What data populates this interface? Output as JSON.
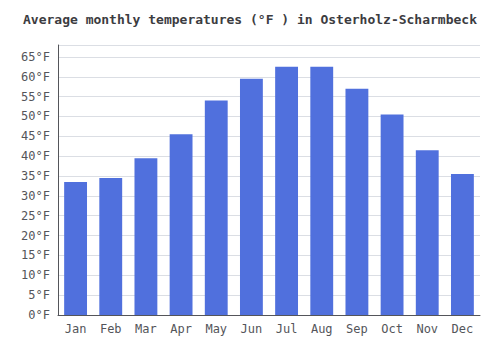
{
  "chart_data": {
    "type": "bar",
    "title": "Average monthly temperatures (°F ) in Osterholz-Scharmbeck",
    "categories": [
      "Jan",
      "Feb",
      "Mar",
      "Apr",
      "May",
      "Jun",
      "Jul",
      "Aug",
      "Sep",
      "Oct",
      "Nov",
      "Dec"
    ],
    "values": [
      33.5,
      34.5,
      39.5,
      45.5,
      54.0,
      59.5,
      62.5,
      62.5,
      57.0,
      50.5,
      41.5,
      35.5
    ],
    "ylim": [
      0,
      68
    ],
    "yticks": [
      {
        "value": 0,
        "label": "0°F"
      },
      {
        "value": 5,
        "label": "5°F"
      },
      {
        "value": 10,
        "label": "10°F"
      },
      {
        "value": 15,
        "label": "15°F"
      },
      {
        "value": 20,
        "label": "20°F"
      },
      {
        "value": 25,
        "label": "25°F"
      },
      {
        "value": 30,
        "label": "30°F"
      },
      {
        "value": 35,
        "label": "35°F"
      },
      {
        "value": 40,
        "label": "40°F"
      },
      {
        "value": 45,
        "label": "45°F"
      },
      {
        "value": 50,
        "label": "50°F"
      },
      {
        "value": 55,
        "label": "55°F"
      },
      {
        "value": 60,
        "label": "60°F"
      },
      {
        "value": 65,
        "label": "65°F"
      }
    ],
    "grid": true
  }
}
